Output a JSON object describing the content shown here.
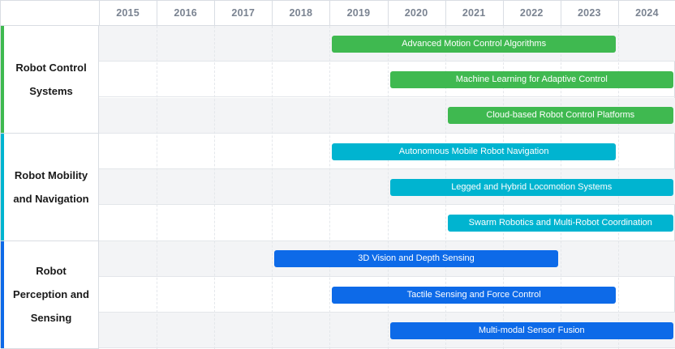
{
  "chart_data": {
    "type": "gantt",
    "years": [
      "2015",
      "2016",
      "2017",
      "2018",
      "2019",
      "2020",
      "2021",
      "2022",
      "2023",
      "2024"
    ],
    "groups": [
      {
        "name": "Robot Control Systems",
        "color": "#3fb950",
        "tasks": [
          {
            "label": "Advanced Motion Control Algorithms",
            "start": 2019,
            "end": 2023.9
          },
          {
            "label": "Machine Learning for Adaptive Control",
            "start": 2020,
            "end": 2024.9
          },
          {
            "label": "Cloud-based Robot Control Platforms",
            "start": 2021,
            "end": 2024.9
          }
        ]
      },
      {
        "name": "Robot Mobility and Navigation",
        "color": "#00b4d0",
        "tasks": [
          {
            "label": "Autonomous Mobile Robot Navigation",
            "start": 2019,
            "end": 2023.9
          },
          {
            "label": "Legged and Hybrid Locomotion Systems",
            "start": 2020,
            "end": 2024.9
          },
          {
            "label": "Swarm Robotics and Multi-Robot Coordination",
            "start": 2021,
            "end": 2024.9
          }
        ]
      },
      {
        "name": "Robot Perception and Sensing",
        "color": "#0d6ae8",
        "tasks": [
          {
            "label": "3D Vision and Depth Sensing",
            "start": 2018,
            "end": 2022.9
          },
          {
            "label": "Tactile Sensing and Force Control",
            "start": 2019,
            "end": 2023.9
          },
          {
            "label": "Multi-modal Sensor Fusion",
            "start": 2020,
            "end": 2024.9
          }
        ]
      }
    ]
  }
}
